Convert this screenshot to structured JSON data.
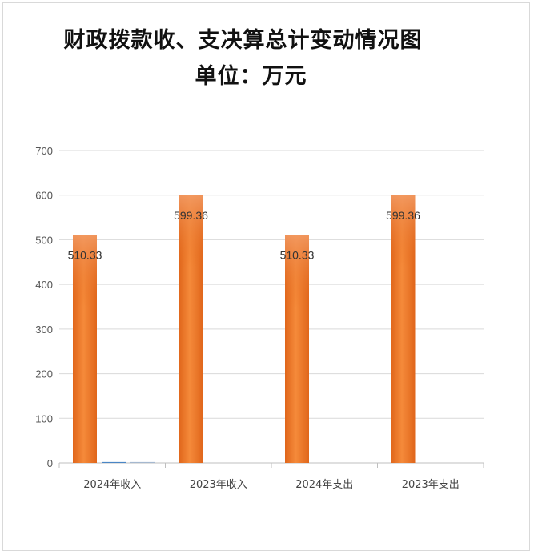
{
  "chart_data": {
    "type": "bar",
    "title": "财政拨款收、支决算总计变动情况图",
    "subtitle": "单位：万元",
    "categories": [
      "2024年收入",
      "2023年收入",
      "2024年支出",
      "2023年支出"
    ],
    "series": [
      {
        "values": [
          510.33,
          599.36,
          510.33,
          599.36
        ],
        "labels": [
          "510.33",
          "599.36",
          "510.33",
          "599.36"
        ],
        "color": "#f07f2e"
      },
      {
        "values": [
          2,
          0,
          0,
          0
        ],
        "color": "#4a86c5"
      },
      {
        "values": [
          2,
          0,
          0,
          0
        ],
        "color": "#a5b8cf"
      }
    ],
    "yticks": [
      "0",
      "100",
      "200",
      "300",
      "400",
      "500",
      "600",
      "700"
    ],
    "ylim": [
      0,
      700
    ],
    "grid": true
  }
}
